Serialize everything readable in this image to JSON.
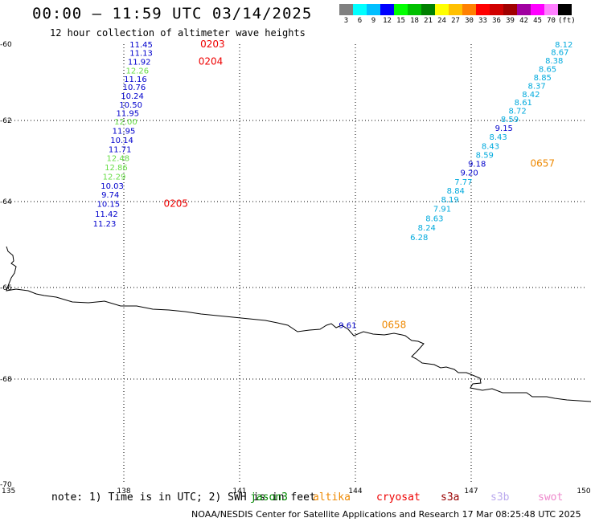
{
  "title": "00:00 – 11:59 UTC 03/14/2025",
  "subtitle": "12 hour collection of altimeter wave heights",
  "legend": {
    "colors": [
      "#808080",
      "#00ffff",
      "#00bfff",
      "#0000ff",
      "#00ff00",
      "#00c000",
      "#008000",
      "#ffff00",
      "#ffc000",
      "#ff8000",
      "#ff0000",
      "#d00000",
      "#a00000",
      "#a000a0",
      "#ff00ff",
      "#ff80ff",
      "#000000"
    ],
    "labels": [
      "3",
      "6",
      "9",
      "12",
      "15",
      "18",
      "21",
      "24",
      "27",
      "30",
      "33",
      "36",
      "39",
      "42",
      "45",
      "70",
      "(ft)"
    ]
  },
  "map": {
    "lon_range": [
      135,
      150
    ],
    "lat_range": [
      -60,
      -70
    ],
    "lon_labels": [
      "135",
      "138",
      "141",
      "144",
      "147",
      "150"
    ],
    "lat_labels": [
      "-60",
      "-62",
      "-64",
      "-66",
      "-68",
      "-70"
    ],
    "wave_heights": [
      {
        "id": "w1",
        "v": "11.45",
        "c": "#0000cc",
        "lon": 138.45,
        "lat": -59.98
      },
      {
        "id": "w2",
        "v": "11.13",
        "c": "#0000cc",
        "lon": 138.45,
        "lat": -60.22
      },
      {
        "id": "w3",
        "v": "11.92",
        "c": "#0000cc",
        "lon": 138.4,
        "lat": -60.45
      },
      {
        "id": "w4",
        "v": "12.26",
        "c": "#66dd44",
        "lon": 138.35,
        "lat": -60.68
      },
      {
        "id": "w5",
        "v": "11.16",
        "c": "#0000cc",
        "lon": 138.3,
        "lat": -60.9
      },
      {
        "id": "w6",
        "v": "10.76",
        "c": "#0000cc",
        "lon": 138.27,
        "lat": -61.12
      },
      {
        "id": "w7",
        "v": "10.24",
        "c": "#0000cc",
        "lon": 138.22,
        "lat": -61.35
      },
      {
        "id": "w8",
        "v": "10.50",
        "c": "#0000cc",
        "lon": 138.18,
        "lat": -61.58
      },
      {
        "id": "w9",
        "v": "11.95",
        "c": "#0000cc",
        "lon": 138.1,
        "lat": -61.8
      },
      {
        "id": "w10",
        "v": "12.00",
        "c": "#66dd44",
        "lon": 138.05,
        "lat": -62.02
      },
      {
        "id": "w11",
        "v": "11.95",
        "c": "#0000cc",
        "lon": 138.0,
        "lat": -62.25
      },
      {
        "id": "w12",
        "v": "10.14",
        "c": "#0000cc",
        "lon": 137.95,
        "lat": -62.48
      },
      {
        "id": "w13",
        "v": "11.71",
        "c": "#0000cc",
        "lon": 137.9,
        "lat": -62.7
      },
      {
        "id": "w14",
        "v": "12.48",
        "c": "#66dd44",
        "lon": 137.85,
        "lat": -62.92
      },
      {
        "id": "w15",
        "v": "12.86",
        "c": "#66dd44",
        "lon": 137.8,
        "lat": -63.15
      },
      {
        "id": "w16",
        "v": "12.29",
        "c": "#66dd44",
        "lon": 137.75,
        "lat": -63.38
      },
      {
        "id": "w17",
        "v": "10.03",
        "c": "#0000cc",
        "lon": 137.7,
        "lat": -63.6
      },
      {
        "id": "w18",
        "v": "9.74",
        "c": "#0000cc",
        "lon": 137.65,
        "lat": -63.82
      },
      {
        "id": "w19",
        "v": "10.15",
        "c": "#0000cc",
        "lon": 137.6,
        "lat": -64.05
      },
      {
        "id": "w20",
        "v": "11.42",
        "c": "#0000cc",
        "lon": 137.55,
        "lat": -64.28
      },
      {
        "id": "w21",
        "v": "11.23",
        "c": "#0000cc",
        "lon": 137.5,
        "lat": -64.5
      },
      {
        "id": "e1",
        "v": "8.12",
        "c": "#00aadd",
        "lon": 149.4,
        "lat": -59.98
      },
      {
        "id": "e2",
        "v": "8.67",
        "c": "#00aadd",
        "lon": 149.3,
        "lat": -60.2
      },
      {
        "id": "e3",
        "v": "8.38",
        "c": "#00aadd",
        "lon": 149.15,
        "lat": -60.42
      },
      {
        "id": "e4",
        "v": "8.65",
        "c": "#00aadd",
        "lon": 148.98,
        "lat": -60.64
      },
      {
        "id": "e5",
        "v": "8.85",
        "c": "#00aadd",
        "lon": 148.85,
        "lat": -60.86
      },
      {
        "id": "e6",
        "v": "8.37",
        "c": "#00aadd",
        "lon": 148.7,
        "lat": -61.08
      },
      {
        "id": "e7",
        "v": "8.42",
        "c": "#00aadd",
        "lon": 148.55,
        "lat": -61.3
      },
      {
        "id": "e8",
        "v": "8.61",
        "c": "#00aadd",
        "lon": 148.35,
        "lat": -61.52
      },
      {
        "id": "e9",
        "v": "8.72",
        "c": "#00aadd",
        "lon": 148.2,
        "lat": -61.74
      },
      {
        "id": "e10",
        "v": "8.59",
        "c": "#00aadd",
        "lon": 148.0,
        "lat": -61.96
      },
      {
        "id": "e11",
        "v": "9.15",
        "c": "#0000cc",
        "lon": 147.85,
        "lat": -62.18
      },
      {
        "id": "e12",
        "v": "8.43",
        "c": "#00aadd",
        "lon": 147.7,
        "lat": -62.4
      },
      {
        "id": "e13",
        "v": "8.43",
        "c": "#00aadd",
        "lon": 147.5,
        "lat": -62.62
      },
      {
        "id": "e14",
        "v": "8.59",
        "c": "#00aadd",
        "lon": 147.35,
        "lat": -62.84
      },
      {
        "id": "e15",
        "v": "9.18",
        "c": "#0000cc",
        "lon": 147.15,
        "lat": -63.06
      },
      {
        "id": "e16",
        "v": "9.20",
        "c": "#0000cc",
        "lon": 146.95,
        "lat": -63.28
      },
      {
        "id": "e17",
        "v": "7.77",
        "c": "#00aadd",
        "lon": 146.8,
        "lat": -63.5
      },
      {
        "id": "e18",
        "v": "8.84",
        "c": "#00aadd",
        "lon": 146.6,
        "lat": -63.72
      },
      {
        "id": "e19",
        "v": "8.19",
        "c": "#00aadd",
        "lon": 146.45,
        "lat": -63.94
      },
      {
        "id": "e20",
        "v": "7.91",
        "c": "#00aadd",
        "lon": 146.25,
        "lat": -64.16
      },
      {
        "id": "e21",
        "v": "8.63",
        "c": "#00aadd",
        "lon": 146.05,
        "lat": -64.38
      },
      {
        "id": "e22",
        "v": "8.24",
        "c": "#00aadd",
        "lon": 145.85,
        "lat": -64.6
      },
      {
        "id": "e23",
        "v": "6.28",
        "c": "#00aadd",
        "lon": 145.65,
        "lat": -64.82
      },
      {
        "id": "c1",
        "v": "9.61",
        "c": "#0000cc",
        "lon": 143.8,
        "lat": -66.82
      }
    ],
    "pass_labels": [
      {
        "id": "p1",
        "v": "0203",
        "c": "#ee0000",
        "lon": 140.3,
        "lat": -59.98
      },
      {
        "id": "p2",
        "v": "0204",
        "c": "#ee0000",
        "lon": 140.25,
        "lat": -60.45
      },
      {
        "id": "p3",
        "v": "0205",
        "c": "#ee0000",
        "lon": 139.35,
        "lat": -64.05
      },
      {
        "id": "p4",
        "v": "0657",
        "c": "#ee8800",
        "lon": 148.85,
        "lat": -63.06
      },
      {
        "id": "p5",
        "v": "0658",
        "c": "#ee8800",
        "lon": 145.0,
        "lat": -66.82
      }
    ]
  },
  "note": "note: 1) Time is in UTC; 2) SWH is in feet",
  "satellites": [
    {
      "name": "jason3",
      "color": "#008800"
    },
    {
      "name": "altika",
      "color": "#ee8800"
    },
    {
      "name": "cryosat",
      "color": "#ee0000"
    },
    {
      "name": "s3a",
      "color": "#990000"
    },
    {
      "name": "s3b",
      "color": "#bbaaee"
    },
    {
      "name": "swot",
      "color": "#ee88cc"
    }
  ],
  "footer": "NOAA/NESDIS Center for Satellite Applications and Research    17 Mar 08:25:48 UTC 2025"
}
